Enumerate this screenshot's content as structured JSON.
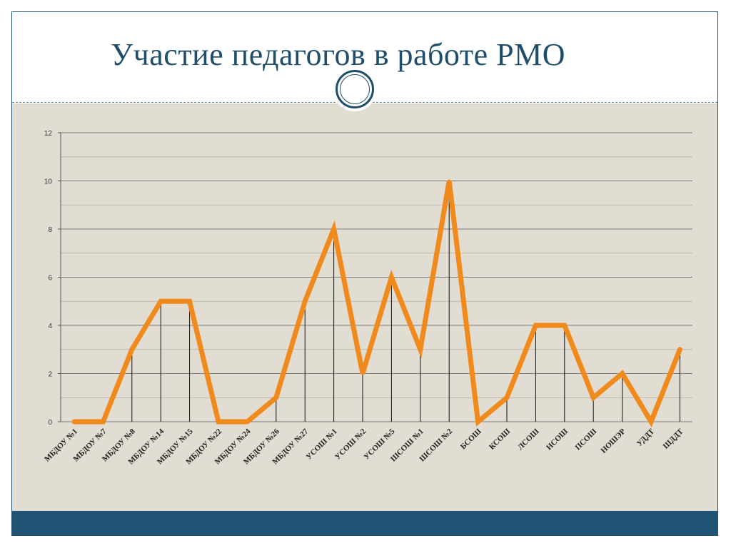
{
  "slide": {
    "title": "Участие педагогов в работе РМО"
  },
  "colors": {
    "title": "#1f4e6b",
    "background": "#e1ddd2",
    "footer": "#1f5475",
    "series": "#f08a1c",
    "grid": "#8a8a8a"
  },
  "icons": {
    "title_badge": "circle-ring-icon"
  },
  "chart_data": {
    "type": "line",
    "title": "",
    "xlabel": "",
    "ylabel": "",
    "ylim": [
      0,
      12
    ],
    "yticks": [
      0,
      2,
      4,
      6,
      8,
      10,
      12
    ],
    "grid": true,
    "drop_lines": true,
    "categories": [
      "МБДОУ №1",
      "МБДОУ №7",
      "МБДОУ №8",
      "МБДОУ №14",
      "МБДОУ №15",
      "МБДОУ №22",
      "МБДОУ №24",
      "МБДОУ №26",
      "МБДОУ №27",
      "УСОШ №1",
      "УСОШ №2",
      "УСОШ №5",
      "ШСОШ №1",
      "ШСОШ №2",
      "БСОШ",
      "КСОШ",
      "ЛСОШ",
      "НСОШ",
      "ПСОШ",
      "НОШЭР",
      "УДДТ",
      "ШДДТ"
    ],
    "series": [
      {
        "values": [
          0,
          0,
          3,
          5,
          5,
          0,
          0,
          1,
          5,
          8,
          2,
          6,
          3,
          10,
          0,
          1,
          4,
          4,
          1,
          2,
          0,
          3
        ]
      }
    ]
  }
}
